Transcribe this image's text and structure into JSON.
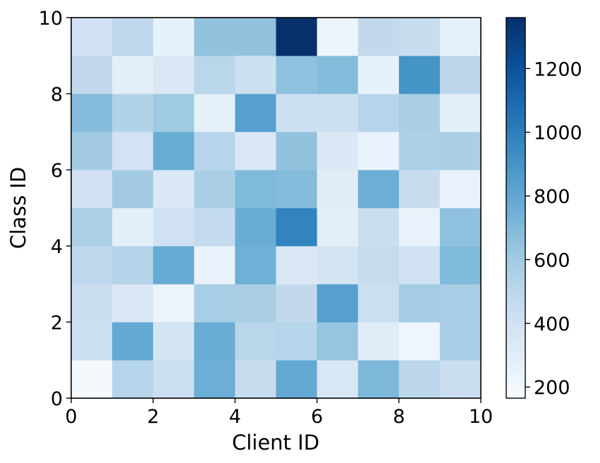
{
  "chart_data": {
    "type": "heatmap",
    "title": "",
    "xlabel": "Client ID",
    "ylabel": "Class ID",
    "xlim": [
      0,
      10
    ],
    "ylim": [
      0,
      10
    ],
    "xticks": [
      "0",
      "2",
      "4",
      "6",
      "8",
      "10"
    ],
    "yticks": [
      "0",
      "2",
      "4",
      "6",
      "8",
      "10"
    ],
    "colormap": "Blues",
    "colorbar": {
      "min": 165,
      "max": 1360,
      "ticks": [
        {
          "value": 200,
          "label": "200"
        },
        {
          "value": 400,
          "label": "400"
        },
        {
          "value": 600,
          "label": "600"
        },
        {
          "value": 800,
          "label": "800"
        },
        {
          "value": 1000,
          "label": "1000"
        },
        {
          "value": 1200,
          "label": "1200"
        }
      ]
    },
    "grid": false,
    "values_by_class": [
      [
        180,
        520,
        430,
        760,
        460,
        790,
        350,
        710,
        500,
        440
      ],
      [
        420,
        790,
        380,
        770,
        510,
        520,
        640,
        300,
        220,
        580
      ],
      [
        440,
        340,
        230,
        580,
        570,
        480,
        840,
        430,
        590,
        580
      ],
      [
        490,
        530,
        780,
        250,
        750,
        340,
        380,
        460,
        400,
        700
      ],
      [
        560,
        290,
        400,
        470,
        770,
        980,
        290,
        440,
        250,
        660
      ],
      [
        400,
        600,
        330,
        570,
        700,
        690,
        300,
        760,
        450,
        250
      ],
      [
        600,
        390,
        770,
        520,
        340,
        650,
        330,
        250,
        560,
        570
      ],
      [
        680,
        540,
        610,
        270,
        840,
        420,
        420,
        520,
        570,
        290
      ],
      [
        480,
        290,
        340,
        510,
        420,
        660,
        690,
        260,
        900,
        500
      ],
      [
        410,
        490,
        260,
        650,
        650,
        1360,
        230,
        480,
        450,
        270
      ]
    ]
  }
}
